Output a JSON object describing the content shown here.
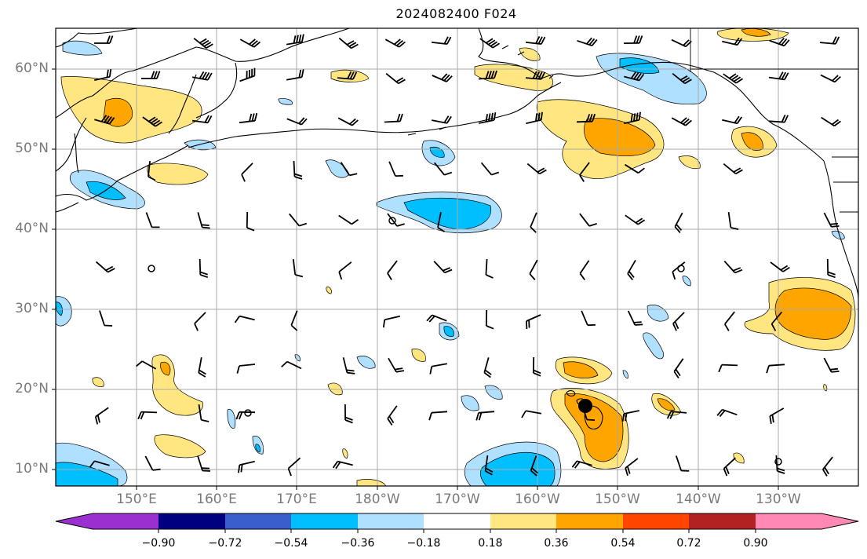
{
  "title": "2024082400 F024",
  "map": {
    "lat_labels": [
      "60°N",
      "50°N",
      "40°N",
      "30°N",
      "20°N",
      "10°N"
    ],
    "lon_labels": [
      "150°E",
      "160°E",
      "170°E",
      "180°W",
      "170°W",
      "160°W",
      "150°W",
      "140°W",
      "130°W"
    ],
    "gridlines": true
  },
  "colorbar": {
    "levels": [
      "−0.90",
      "−0.72",
      "−0.54",
      "−0.36",
      "−0.18",
      "0.18",
      "0.36",
      "0.54",
      "0.72",
      "0.90"
    ],
    "colors": [
      "#9b30d0",
      "#000080",
      "#3a5fcd",
      "#00bfff",
      "#b0e0ff",
      "#ffffff",
      "#ffe680",
      "#ffa500",
      "#ff4500",
      "#b22222",
      "#ff88b5"
    ],
    "extend": "both"
  },
  "colors": {
    "coast": "#000000",
    "grid": "#a9a9a9",
    "neg_light": "#b0e0ff",
    "neg_mid": "#00bfff",
    "pos_light": "#ffe680",
    "pos_mid": "#ffa500"
  }
}
